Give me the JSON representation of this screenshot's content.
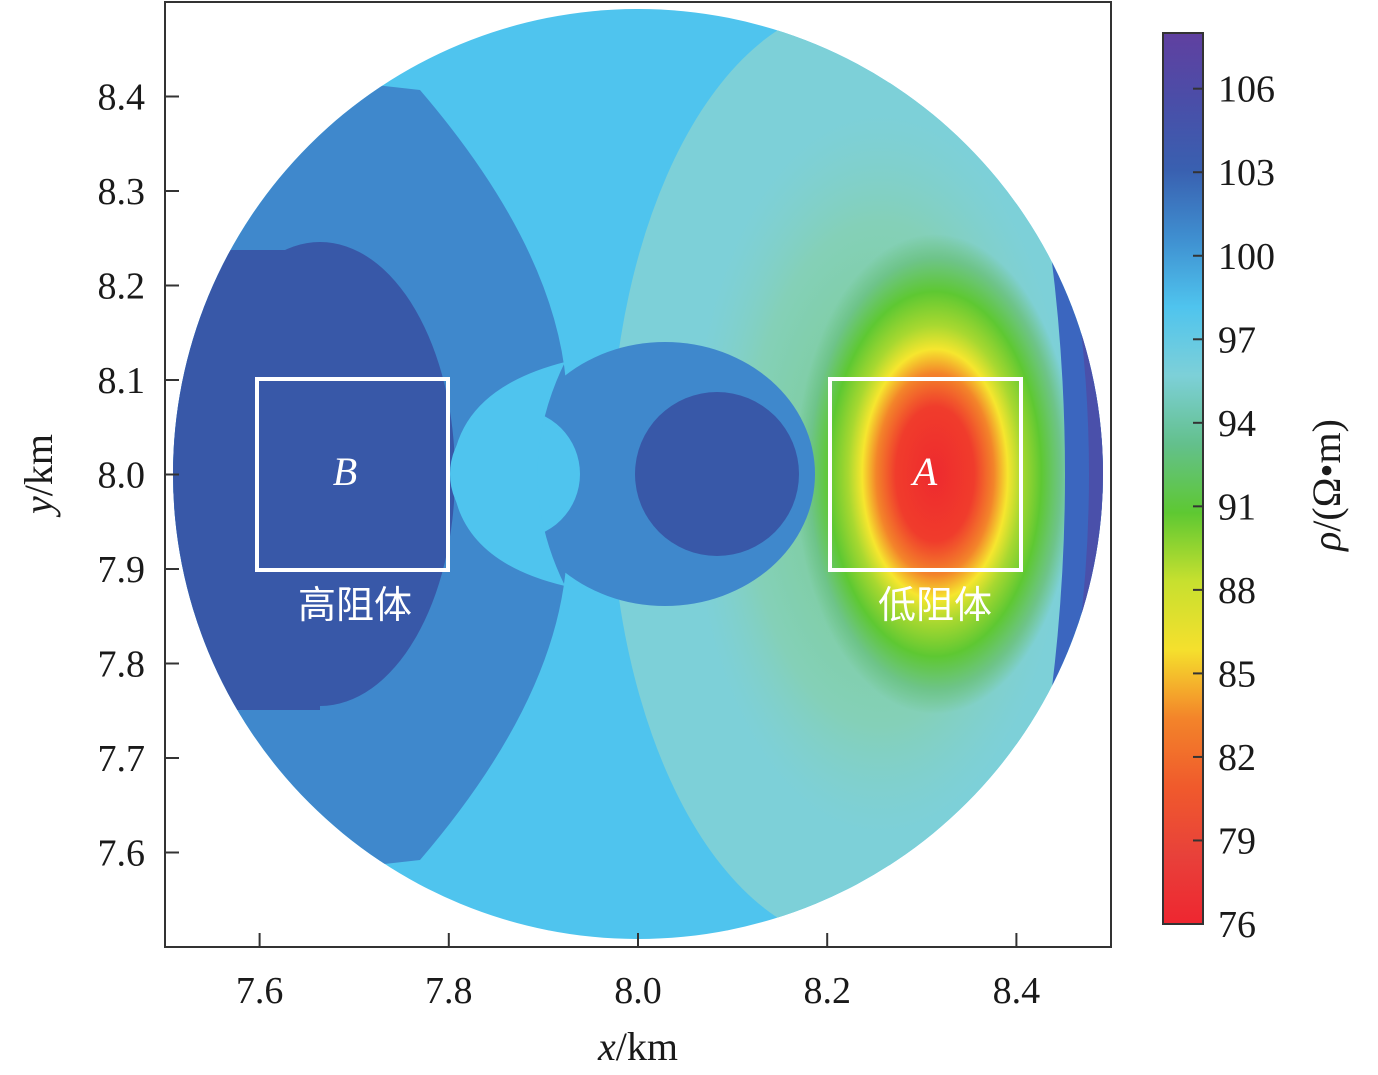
{
  "chart_data": {
    "type": "heatmap",
    "xlabel": "x/km",
    "xlabel_var": "x",
    "xlabel_unit": "/km",
    "ylabel": "y/km",
    "ylabel_var": "y",
    "ylabel_unit": "/km",
    "xlim": [
      7.5,
      8.5
    ],
    "ylim": [
      7.5,
      8.5
    ],
    "x_ticks": [
      7.6,
      7.8,
      8.0,
      8.2,
      8.4
    ],
    "x_tick_labels": [
      "7.6",
      "7.8",
      "8.0",
      "8.2",
      "8.4"
    ],
    "y_ticks": [
      7.6,
      7.7,
      7.8,
      7.9,
      8.0,
      8.1,
      8.2,
      8.3,
      8.4
    ],
    "y_tick_labels": [
      "7.6",
      "7.7",
      "7.8",
      "7.9",
      "8.0",
      "8.1",
      "8.2",
      "8.3",
      "8.4"
    ],
    "colorbar": {
      "label": "ρ/(Ω·m)",
      "label_var": "ρ",
      "label_unit": "/(Ω•m)",
      "min": 76,
      "max": 108,
      "ticks": [
        76,
        79,
        82,
        85,
        88,
        91,
        94,
        97,
        100,
        103,
        106
      ],
      "tick_labels": [
        "76",
        "79",
        "82",
        "85",
        "88",
        "91",
        "94",
        "97",
        "100",
        "103",
        "106"
      ],
      "colors_bottom_to_top": [
        "#ee2630",
        "#e8413a",
        "#f05a2c",
        "#f3842a",
        "#f5e02d",
        "#c7e02f",
        "#5ec832",
        "#63c08c",
        "#7dd0d8",
        "#4fc4ee",
        "#3f8fd0",
        "#3960b0",
        "#4a4ea8",
        "#6040a0"
      ]
    },
    "domain": {
      "shape": "circle",
      "center": [
        8.0,
        8.0
      ],
      "radius": 0.49
    },
    "anomalies": [
      {
        "label": "A",
        "note": "低阻体",
        "x": [
          8.2,
          8.4
        ],
        "y": [
          7.9,
          8.1
        ],
        "value": 76
      },
      {
        "label": "B",
        "note": "高阻体",
        "x": [
          7.6,
          7.8
        ],
        "y": [
          7.9,
          8.1
        ],
        "value": 103
      }
    ],
    "grid": false
  },
  "annotations": {
    "box_a_label": "A",
    "box_a_note": "低阻体",
    "box_b_label": "B",
    "box_b_note": "高阻体"
  }
}
